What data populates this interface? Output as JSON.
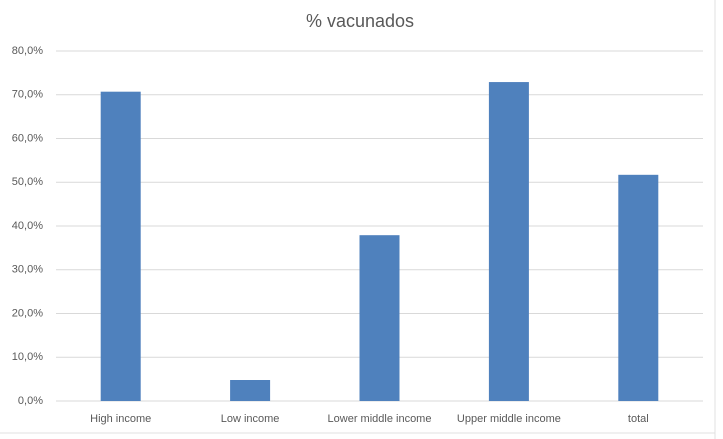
{
  "chart_data": {
    "type": "bar",
    "title": "% vacunados",
    "categories": [
      "High income",
      "Low income",
      "Lower middle income",
      "Upper middle income",
      "total"
    ],
    "values": [
      70.7,
      4.8,
      37.9,
      72.9,
      51.7
    ],
    "color": "#4f81bd",
    "ylim": [
      0,
      80
    ],
    "yticks": [
      {
        "value": 0,
        "label": "0,0%"
      },
      {
        "value": 10,
        "label": "10,0%"
      },
      {
        "value": 20,
        "label": "20,0%"
      },
      {
        "value": 30,
        "label": "30,0%"
      },
      {
        "value": 40,
        "label": "40,0%"
      },
      {
        "value": 50,
        "label": "50,0%"
      },
      {
        "value": 60,
        "label": "60,0%"
      },
      {
        "value": 70,
        "label": "70,0%"
      },
      {
        "value": 80,
        "label": "80,0%"
      }
    ],
    "grid": true
  }
}
